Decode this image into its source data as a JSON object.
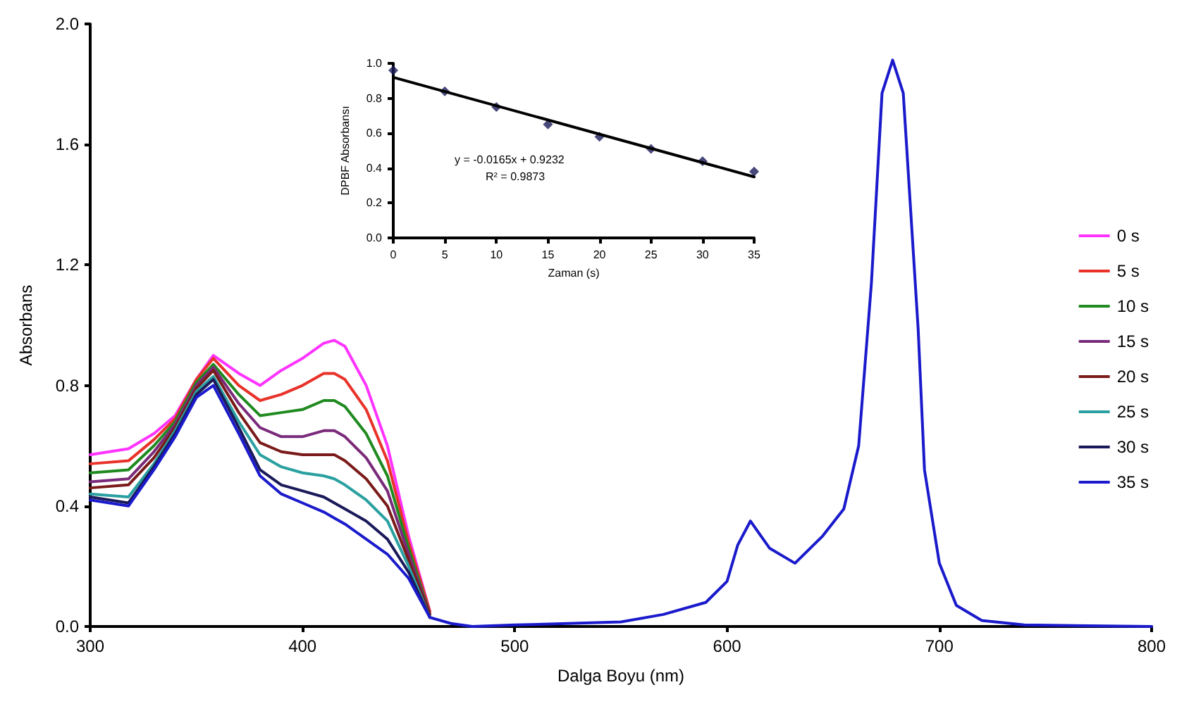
{
  "chart_data": [
    {
      "type": "line",
      "xlabel": "Dalga Boyu (nm)",
      "ylabel": "Absorbans",
      "marker": "none",
      "legend": "right",
      "grid": false,
      "x": [
        300,
        318,
        330,
        340,
        350,
        358,
        370,
        380,
        390,
        400,
        410,
        415,
        420,
        430,
        440,
        450,
        460,
        470,
        480,
        500,
        550,
        570,
        590,
        600,
        605,
        611,
        620,
        632,
        645,
        655,
        662,
        668,
        673,
        678,
        683,
        690,
        693,
        700,
        708,
        720,
        740,
        800
      ],
      "xlim": [
        300,
        800
      ],
      "xticks": [
        300,
        400,
        500,
        600,
        700,
        800
      ],
      "ylim": [
        0,
        2
      ],
      "yticks": [
        {
          "value": 0,
          "label": "0.0"
        },
        {
          "value": 0.4,
          "label": "0.4"
        },
        {
          "value": 0.8,
          "label": "0.8"
        },
        {
          "value": 1.2,
          "label": "1.2"
        },
        {
          "value": 1.6,
          "label": "1.6"
        },
        {
          "value": 2,
          "label": "2.0"
        }
      ],
      "series": [
        {
          "name": "0 s",
          "color": "#ff33ff",
          "values": [
            0.57,
            0.59,
            0.64,
            0.7,
            0.82,
            0.9,
            0.84,
            0.8,
            0.85,
            0.89,
            0.94,
            0.95,
            0.93,
            0.8,
            0.6,
            0.3,
            0.05,
            null,
            null,
            null,
            null,
            null,
            null,
            null,
            null,
            null,
            null,
            null,
            null,
            null,
            null,
            null,
            null,
            null,
            null,
            null,
            null,
            null,
            null,
            null,
            null,
            null
          ]
        },
        {
          "name": "5 s",
          "color": "#e8322a",
          "values": [
            0.54,
            0.55,
            0.62,
            0.69,
            0.82,
            0.89,
            0.8,
            0.75,
            0.77,
            0.8,
            0.84,
            0.84,
            0.82,
            0.72,
            0.55,
            0.28,
            0.05,
            null,
            null,
            null,
            null,
            null,
            null,
            null,
            null,
            null,
            null,
            null,
            null,
            null,
            null,
            null,
            null,
            null,
            null,
            null,
            null,
            null,
            null,
            null,
            null,
            null
          ]
        },
        {
          "name": "10 s",
          "color": "#1f8a1f",
          "values": [
            0.51,
            0.52,
            0.6,
            0.68,
            0.81,
            0.87,
            0.77,
            0.7,
            0.71,
            0.72,
            0.75,
            0.75,
            0.73,
            0.64,
            0.5,
            0.26,
            0.04,
            null,
            null,
            null,
            null,
            null,
            null,
            null,
            null,
            null,
            null,
            null,
            null,
            null,
            null,
            null,
            null,
            null,
            null,
            null,
            null,
            null,
            null,
            null,
            null,
            null
          ]
        },
        {
          "name": "15 s",
          "color": "#7a2a7a",
          "values": [
            0.48,
            0.49,
            0.58,
            0.67,
            0.8,
            0.86,
            0.74,
            0.66,
            0.63,
            0.63,
            0.65,
            0.65,
            0.63,
            0.56,
            0.45,
            0.24,
            0.04,
            null,
            null,
            null,
            null,
            null,
            null,
            null,
            null,
            null,
            null,
            null,
            null,
            null,
            null,
            null,
            null,
            null,
            null,
            null,
            null,
            null,
            null,
            null,
            null,
            null
          ]
        },
        {
          "name": "20 s",
          "color": "#7a1a1a",
          "values": [
            0.46,
            0.47,
            0.56,
            0.66,
            0.79,
            0.85,
            0.71,
            0.61,
            0.58,
            0.57,
            0.57,
            0.57,
            0.55,
            0.49,
            0.4,
            0.22,
            0.04,
            null,
            null,
            null,
            null,
            null,
            null,
            null,
            null,
            null,
            null,
            null,
            null,
            null,
            null,
            null,
            null,
            null,
            null,
            null,
            null,
            null,
            null,
            null,
            null,
            null
          ]
        },
        {
          "name": "25 s",
          "color": "#2aa0a0",
          "values": [
            0.44,
            0.43,
            0.54,
            0.65,
            0.78,
            0.83,
            0.68,
            0.57,
            0.53,
            0.51,
            0.5,
            0.49,
            0.47,
            0.42,
            0.35,
            0.2,
            0.03,
            null,
            null,
            null,
            null,
            null,
            null,
            null,
            null,
            null,
            null,
            null,
            null,
            null,
            null,
            null,
            null,
            null,
            null,
            null,
            null,
            null,
            null,
            null,
            null,
            null
          ]
        },
        {
          "name": "30 s",
          "color": "#1a1a5a",
          "values": [
            0.43,
            0.41,
            0.53,
            0.64,
            0.77,
            0.82,
            0.66,
            0.52,
            0.47,
            0.45,
            0.43,
            0.41,
            0.39,
            0.35,
            0.29,
            0.18,
            0.03,
            null,
            null,
            null,
            null,
            null,
            null,
            null,
            null,
            null,
            null,
            null,
            null,
            null,
            null,
            null,
            null,
            null,
            null,
            null,
            null,
            null,
            null,
            null,
            null,
            null
          ]
        },
        {
          "name": "35 s",
          "color": "#1a1acc",
          "values": [
            0.42,
            0.4,
            0.52,
            0.63,
            0.76,
            0.8,
            0.64,
            0.5,
            0.44,
            0.41,
            0.38,
            0.36,
            0.34,
            0.29,
            0.24,
            0.16,
            0.03,
            0.01,
            0,
            0.005,
            0.015,
            0.04,
            0.08,
            0.15,
            0.27,
            0.35,
            0.26,
            0.21,
            0.3,
            0.39,
            0.6,
            1.14,
            1.77,
            1.88,
            1.77,
            0.99,
            0.52,
            0.21,
            0.07,
            0.02,
            0.005,
            0
          ]
        }
      ]
    },
    {
      "type": "scatter",
      "xlabel": "Zaman (s)",
      "ylabel": "DPBF Absorbansı",
      "marker": "diamond",
      "legend": false,
      "grid": false,
      "annotations": [
        "y = -0.0165x + 0.9232",
        "R² = 0.9873"
      ],
      "x": [
        0,
        5,
        10,
        15,
        20,
        25,
        30,
        35
      ],
      "xlim": [
        0,
        35
      ],
      "xticks": [
        0,
        5,
        10,
        15,
        20,
        25,
        30,
        35
      ],
      "ylim": [
        0,
        1
      ],
      "yticks": [
        {
          "value": 0,
          "label": "0.0"
        },
        {
          "value": 0.2,
          "label": "0.2"
        },
        {
          "value": 0.4,
          "label": "0.4"
        },
        {
          "value": 0.6,
          "label": "0.6"
        },
        {
          "value": 0.8,
          "label": "0.8"
        },
        {
          "value": 1,
          "label": "1.0"
        }
      ],
      "series": [
        {
          "color": "#1a1a5a",
          "values": [
            0.96,
            0.84,
            0.75,
            0.65,
            0.58,
            0.51,
            0.44,
            0.38
          ]
        },
        {
          "type": "line",
          "marker": "none",
          "color": "#000000",
          "x": [
            0,
            35
          ],
          "values": [
            0.92,
            0.35
          ]
        }
      ]
    }
  ]
}
